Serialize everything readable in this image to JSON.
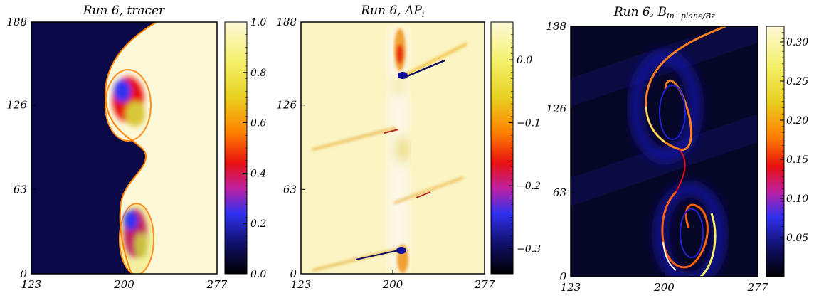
{
  "chart_data": [
    {
      "type": "heatmap",
      "title": "Run 6, tracer",
      "x_ticks": [
        "123",
        "200",
        "277"
      ],
      "y_ticks": [
        "0",
        "63",
        "126",
        "188"
      ],
      "xlim": [
        123,
        277
      ],
      "ylim": [
        0,
        188
      ],
      "colorbar": {
        "ticks": [
          "0.0",
          "0.2",
          "0.4",
          "0.6",
          "0.8",
          "1.0"
        ],
        "tick_values": [
          0.0,
          0.2,
          0.4,
          0.6,
          0.8,
          1.0
        ],
        "range": [
          0.0,
          1.0
        ],
        "colors": [
          "#000000",
          "#10106a",
          "#3030f0",
          "#c020a0",
          "#e81010",
          "#ff8000",
          "#e8d020",
          "#f4f068",
          "#fdf8d8"
        ]
      }
    },
    {
      "type": "heatmap",
      "title": "Run 6, ΔP",
      "title_sub": "i",
      "x_ticks": [
        "123",
        "200",
        "277"
      ],
      "y_ticks": [
        "0",
        "63",
        "126",
        "188"
      ],
      "xlim": [
        123,
        277
      ],
      "ylim": [
        0,
        188
      ],
      "colorbar": {
        "ticks": [
          "−0.3",
          "−0.2",
          "−0.1",
          "0.0"
        ],
        "tick_values": [
          -0.3,
          -0.2,
          -0.1,
          0.0
        ],
        "range": [
          -0.34,
          0.06
        ],
        "colors": [
          "#000000",
          "#10106a",
          "#3030f0",
          "#c020a0",
          "#e81010",
          "#ff8000",
          "#e8d020",
          "#f4f068",
          "#fdf8d8"
        ]
      }
    },
    {
      "type": "heatmap",
      "title": "Run 6, B",
      "title_sub": "in−plane/Bz",
      "x_ticks": [
        "123",
        "200",
        "277"
      ],
      "y_ticks": [
        "0",
        "63",
        "126",
        "188"
      ],
      "xlim": [
        123,
        277
      ],
      "ylim": [
        0,
        188
      ],
      "colorbar": {
        "ticks": [
          "0.05",
          "0.10",
          "0.15",
          "0.20",
          "0.25",
          "0.30"
        ],
        "tick_values": [
          0.05,
          0.1,
          0.15,
          0.2,
          0.25,
          0.3
        ],
        "range": [
          0.0,
          0.32
        ],
        "colors": [
          "#000000",
          "#10106a",
          "#3030f0",
          "#c020a0",
          "#e81010",
          "#ff8000",
          "#e8d020",
          "#f4f068",
          "#fdf8d8"
        ]
      }
    }
  ]
}
